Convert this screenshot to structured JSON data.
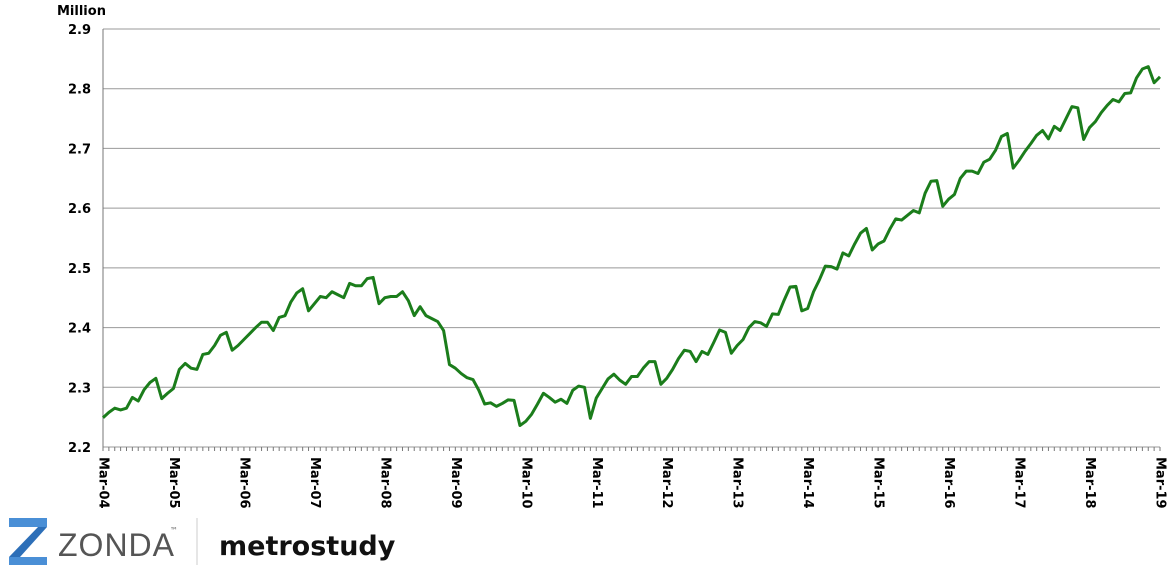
{
  "chart_data": {
    "type": "line",
    "ylabel": "Million",
    "categories": [
      "Mar-04",
      null,
      null,
      null,
      null,
      null,
      null,
      null,
      null,
      null,
      null,
      null,
      "Mar-05",
      null,
      null,
      null,
      null,
      null,
      null,
      null,
      null,
      null,
      null,
      null,
      "Mar-06",
      null,
      null,
      null,
      null,
      null,
      null,
      null,
      null,
      null,
      null,
      null,
      "Mar-07",
      null,
      null,
      null,
      null,
      null,
      null,
      null,
      null,
      null,
      null,
      null,
      "Mar-08",
      null,
      null,
      null,
      null,
      null,
      null,
      null,
      null,
      null,
      null,
      null,
      "Mar-09",
      null,
      null,
      null,
      null,
      null,
      null,
      null,
      null,
      null,
      null,
      null,
      "Mar-10",
      null,
      null,
      null,
      null,
      null,
      null,
      null,
      null,
      null,
      null,
      null,
      "Mar-11",
      null,
      null,
      null,
      null,
      null,
      null,
      null,
      null,
      null,
      null,
      null,
      "Mar-12",
      null,
      null,
      null,
      null,
      null,
      null,
      null,
      null,
      null,
      null,
      null,
      "Mar-13",
      null,
      null,
      null,
      null,
      null,
      null,
      null,
      null,
      null,
      null,
      null,
      "Mar-14",
      null,
      null,
      null,
      null,
      null,
      null,
      null,
      null,
      null,
      null,
      null,
      "Mar-15",
      null,
      null,
      null,
      null,
      null,
      null,
      null,
      null,
      null,
      null,
      null,
      "Mar-16",
      null,
      null,
      null,
      null,
      null,
      null,
      null,
      null,
      null,
      null,
      null,
      "Mar-17",
      null,
      null,
      null,
      null,
      null,
      null,
      null,
      null,
      null,
      null,
      null,
      "Mar-18",
      null,
      null,
      null,
      null,
      null,
      null,
      null,
      null,
      null,
      null,
      null,
      "Mar-19"
    ],
    "series": [
      {
        "color": "#1b7d1b",
        "values": [
          2.249,
          2.258,
          2.265,
          2.262,
          2.265,
          2.283,
          2.277,
          2.296,
          2.308,
          2.315,
          2.281,
          2.29,
          2.298,
          2.33,
          2.34,
          2.332,
          2.33,
          2.355,
          2.357,
          2.37,
          2.387,
          2.392,
          2.362,
          2.37,
          2.38,
          2.39,
          2.4,
          2.409,
          2.409,
          2.395,
          2.417,
          2.42,
          2.443,
          2.458,
          2.465,
          2.428,
          2.44,
          2.452,
          2.45,
          2.46,
          2.455,
          2.45,
          2.474,
          2.47,
          2.47,
          2.482,
          2.484,
          2.44,
          2.45,
          2.452,
          2.452,
          2.46,
          2.445,
          2.42,
          2.435,
          2.42,
          2.415,
          2.41,
          2.395,
          2.338,
          2.332,
          2.323,
          2.316,
          2.313,
          2.295,
          2.272,
          2.274,
          2.268,
          2.273,
          2.279,
          2.278,
          2.236,
          2.243,
          2.255,
          2.272,
          2.29,
          2.283,
          2.275,
          2.28,
          2.273,
          2.295,
          2.302,
          2.3,
          2.248,
          2.282,
          2.298,
          2.314,
          2.322,
          2.312,
          2.305,
          2.318,
          2.318,
          2.332,
          2.343,
          2.343,
          2.305,
          2.315,
          2.33,
          2.348,
          2.362,
          2.36,
          2.343,
          2.36,
          2.355,
          2.375,
          2.396,
          2.392,
          2.357,
          2.37,
          2.38,
          2.4,
          2.41,
          2.408,
          2.402,
          2.423,
          2.422,
          2.446,
          2.468,
          2.469,
          2.428,
          2.432,
          2.46,
          2.48,
          2.503,
          2.502,
          2.498,
          2.525,
          2.52,
          2.54,
          2.558,
          2.566,
          2.53,
          2.54,
          2.545,
          2.565,
          2.582,
          2.58,
          2.588,
          2.596,
          2.592,
          2.625,
          2.645,
          2.646,
          2.603,
          2.615,
          2.623,
          2.65,
          2.662,
          2.662,
          2.658,
          2.677,
          2.682,
          2.697,
          2.72,
          2.725,
          2.667,
          2.68,
          2.695,
          2.708,
          2.722,
          2.73,
          2.716,
          2.737,
          2.73,
          2.75,
          2.77,
          2.768,
          2.715,
          2.735,
          2.745,
          2.76,
          2.772,
          2.782,
          2.778,
          2.792,
          2.793,
          2.818,
          2.833,
          2.837,
          2.81,
          2.82
        ]
      }
    ],
    "ylim": [
      2.2,
      2.9
    ],
    "yticks": [
      2.2,
      2.3,
      2.4,
      2.5,
      2.6,
      2.7,
      2.8,
      2.9
    ],
    "grid": true
  },
  "footer": {
    "brand": "ZONDA",
    "trademark": "™",
    "partner": "metrostudy"
  }
}
